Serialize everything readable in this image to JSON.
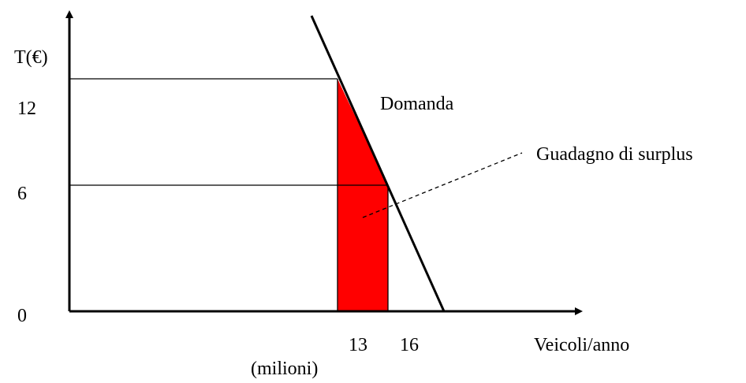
{
  "axes": {
    "y_label": "T(€)",
    "x_label": "Veicoli/anno",
    "x_unit": "(milioni)"
  },
  "y_ticks": [
    12,
    6,
    0
  ],
  "x_ticks": [
    13,
    16
  ],
  "labels": {
    "demand": "Domanda",
    "surplus": "Guadagno di surplus"
  }
}
